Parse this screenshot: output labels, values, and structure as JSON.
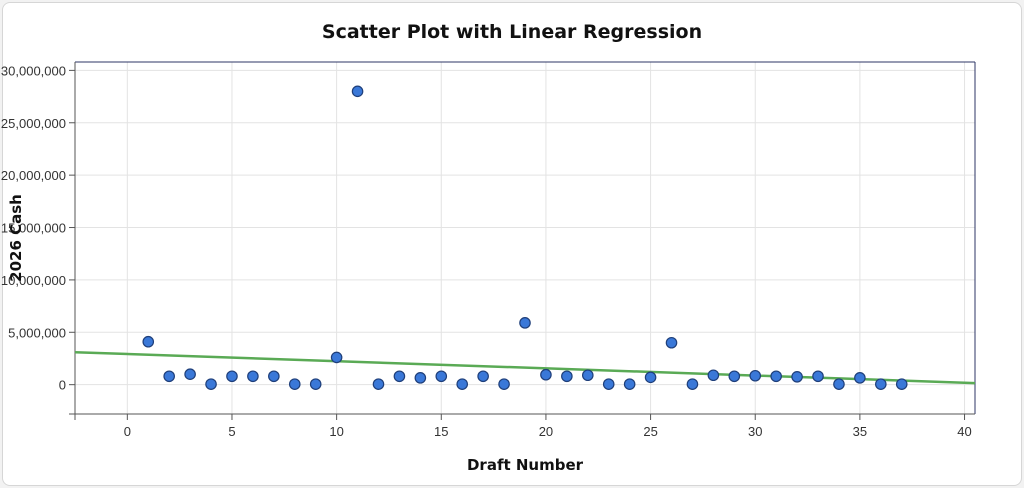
{
  "chart_data": {
    "type": "scatter",
    "title": "Scatter Plot with Linear Regression",
    "xlabel": "Draft Number",
    "ylabel": "2026 Cash",
    "xlim": [
      -2.5,
      40.5
    ],
    "ylim": [
      -2800000,
      30800000
    ],
    "x_ticks": [
      0,
      5,
      10,
      15,
      20,
      25,
      30,
      35,
      40
    ],
    "y_ticks": [
      0,
      5000000,
      10000000,
      15000000,
      20000000,
      25000000,
      30000000
    ],
    "y_tick_labels": [
      "0",
      "5,000,000",
      "10,000,000",
      "15,000,000",
      "20,000,000",
      "25,000,000",
      "30,000,000"
    ],
    "grid": true,
    "point_color": "#3a78d8",
    "line_color": "#5aaa55",
    "series": [
      {
        "type": "scatter",
        "points": [
          [
            1,
            4100000
          ],
          [
            2,
            800000
          ],
          [
            3,
            1000000
          ],
          [
            4,
            50000
          ],
          [
            5,
            800000
          ],
          [
            6,
            800000
          ],
          [
            7,
            800000
          ],
          [
            8,
            50000
          ],
          [
            9,
            50000
          ],
          [
            10,
            2600000
          ],
          [
            11,
            28000000
          ],
          [
            12,
            50000
          ],
          [
            13,
            800000
          ],
          [
            14,
            650000
          ],
          [
            15,
            800000
          ],
          [
            16,
            50000
          ],
          [
            17,
            800000
          ],
          [
            18,
            50000
          ],
          [
            19,
            5900000
          ],
          [
            20,
            950000
          ],
          [
            21,
            800000
          ],
          [
            22,
            900000
          ],
          [
            23,
            50000
          ],
          [
            24,
            50000
          ],
          [
            25,
            700000
          ],
          [
            26,
            4000000
          ],
          [
            27,
            50000
          ],
          [
            28,
            900000
          ],
          [
            29,
            800000
          ],
          [
            30,
            850000
          ],
          [
            31,
            800000
          ],
          [
            32,
            750000
          ],
          [
            33,
            800000
          ],
          [
            34,
            50000
          ],
          [
            35,
            650000
          ],
          [
            36,
            50000
          ],
          [
            37,
            50000
          ]
        ]
      },
      {
        "type": "line",
        "points": [
          [
            -2.5,
            3100000
          ],
          [
            40.5,
            150000
          ]
        ]
      }
    ]
  }
}
